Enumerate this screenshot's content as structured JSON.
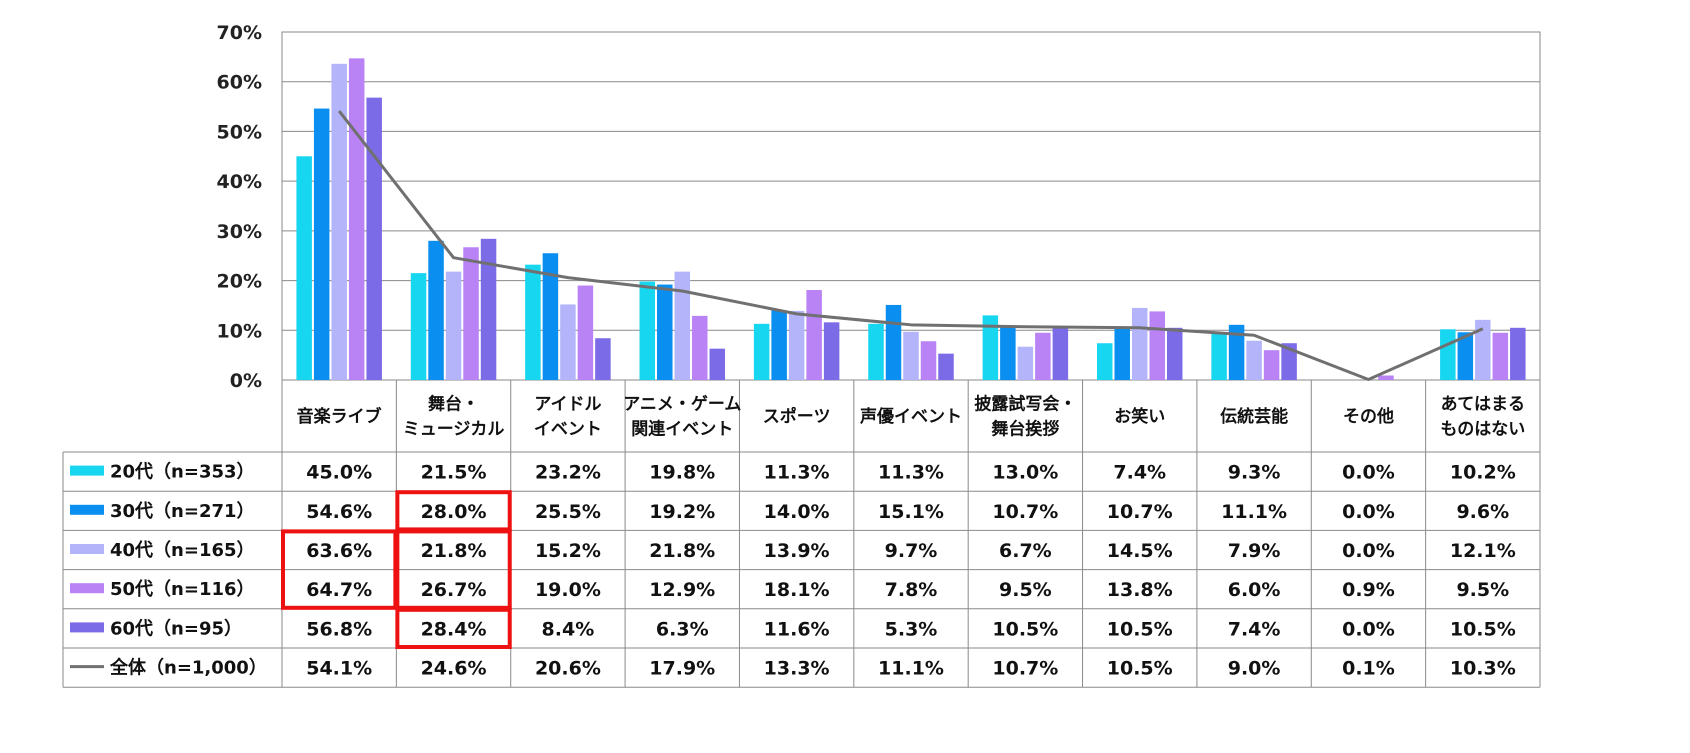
{
  "chart_data": {
    "type": "bar",
    "ylim": [
      0,
      70
    ],
    "yticks": [
      "0%",
      "10%",
      "20%",
      "30%",
      "40%",
      "50%",
      "60%",
      "70%"
    ],
    "grid": true,
    "categories": [
      [
        "音楽ライブ"
      ],
      [
        "舞台・",
        "ミュージカル"
      ],
      [
        "アイドル",
        "イベント"
      ],
      [
        "アニメ・ゲーム",
        "関連イベント"
      ],
      [
        "スポーツ"
      ],
      [
        "声優イベント"
      ],
      [
        "披露試写会・",
        "舞台挨拶"
      ],
      [
        "お笑い"
      ],
      [
        "伝統芸能"
      ],
      [
        "その他"
      ],
      [
        "あてはまる",
        "ものはない"
      ]
    ],
    "series": [
      {
        "name": "20代（n=353）",
        "color": "#17d6f0",
        "kind": "bar",
        "values": [
          45.0,
          21.5,
          23.2,
          19.8,
          11.3,
          11.3,
          13.0,
          7.4,
          9.3,
          0.0,
          10.2
        ],
        "labels": [
          "45.0%",
          "21.5%",
          "23.2%",
          "19.8%",
          "11.3%",
          "11.3%",
          "13.0%",
          "7.4%",
          "9.3%",
          "0.0%",
          "10.2%"
        ]
      },
      {
        "name": "30代（n=271）",
        "color": "#0a8ff0",
        "kind": "bar",
        "values": [
          54.6,
          28.0,
          25.5,
          19.2,
          14.0,
          15.1,
          10.7,
          10.7,
          11.1,
          0.0,
          9.6
        ],
        "labels": [
          "54.6%",
          "28.0%",
          "25.5%",
          "19.2%",
          "14.0%",
          "15.1%",
          "10.7%",
          "10.7%",
          "11.1%",
          "0.0%",
          "9.6%"
        ]
      },
      {
        "name": "40代（n=165）",
        "color": "#b4b4fa",
        "kind": "bar",
        "values": [
          63.6,
          21.8,
          15.2,
          21.8,
          13.9,
          9.7,
          6.7,
          14.5,
          7.9,
          0.0,
          12.1
        ],
        "labels": [
          "63.6%",
          "21.8%",
          "15.2%",
          "21.8%",
          "13.9%",
          "9.7%",
          "6.7%",
          "14.5%",
          "7.9%",
          "0.0%",
          "12.1%"
        ]
      },
      {
        "name": "50代（n=116）",
        "color": "#b982f5",
        "kind": "bar",
        "values": [
          64.7,
          26.7,
          19.0,
          12.9,
          18.1,
          7.8,
          9.5,
          13.8,
          6.0,
          0.9,
          9.5
        ],
        "labels": [
          "64.7%",
          "26.7%",
          "19.0%",
          "12.9%",
          "18.1%",
          "7.8%",
          "9.5%",
          "13.8%",
          "6.0%",
          "0.9%",
          "9.5%"
        ]
      },
      {
        "name": "60代（n=95）",
        "color": "#7b6be6",
        "kind": "bar",
        "values": [
          56.8,
          28.4,
          8.4,
          6.3,
          11.6,
          5.3,
          10.5,
          10.5,
          7.4,
          0.0,
          10.5
        ],
        "labels": [
          "56.8%",
          "28.4%",
          "8.4%",
          "6.3%",
          "11.6%",
          "5.3%",
          "10.5%",
          "10.5%",
          "7.4%",
          "0.0%",
          "10.5%"
        ]
      },
      {
        "name": "全体（n=1,000）",
        "color": "#707070",
        "kind": "line",
        "values": [
          54.1,
          24.6,
          20.6,
          17.9,
          13.3,
          11.1,
          10.7,
          10.5,
          9.0,
          0.1,
          10.3
        ],
        "labels": [
          "54.1%",
          "24.6%",
          "20.6%",
          "17.9%",
          "13.3%",
          "11.1%",
          "10.7%",
          "10.5%",
          "9.0%",
          "0.1%",
          "10.3%"
        ]
      }
    ],
    "highlight_color": "#ee1111",
    "highlighted_cells": [
      {
        "rows": [
          2,
          3
        ],
        "cols": [
          0,
          0
        ]
      },
      {
        "rows": [
          1,
          1
        ],
        "cols": [
          1,
          1
        ]
      },
      {
        "rows": [
          2,
          3
        ],
        "cols": [
          1,
          1
        ]
      },
      {
        "rows": [
          4,
          4
        ],
        "cols": [
          1,
          1
        ]
      }
    ]
  }
}
